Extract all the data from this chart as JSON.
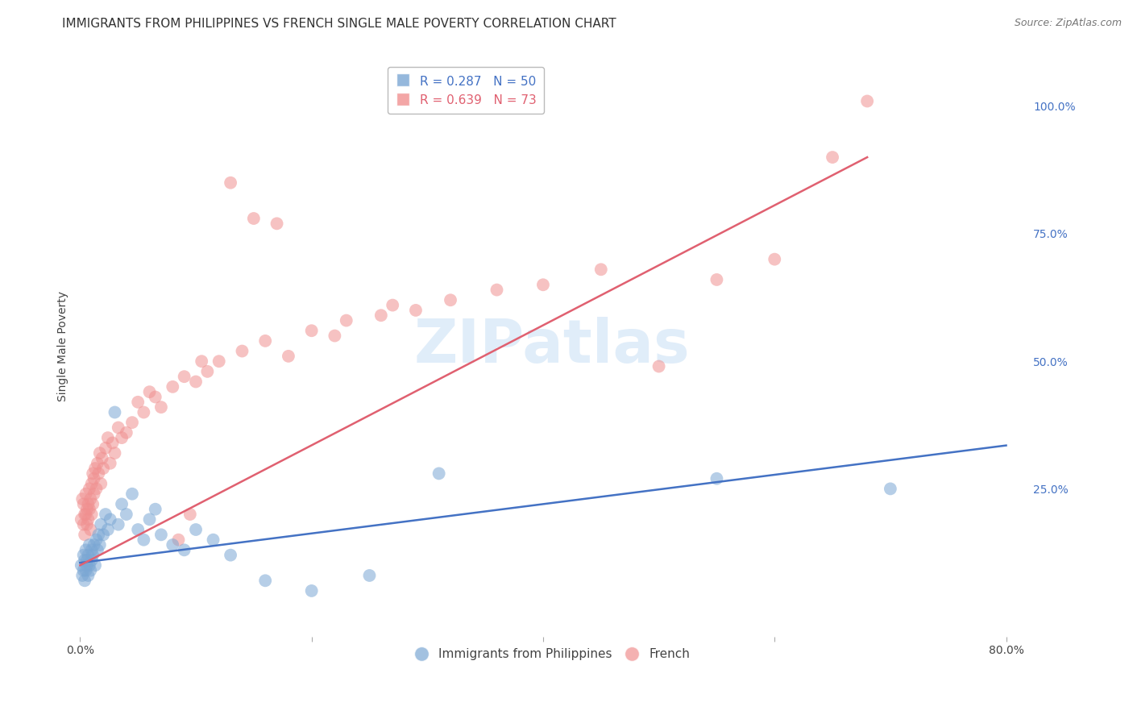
{
  "title": "IMMIGRANTS FROM PHILIPPINES VS FRENCH SINGLE MALE POVERTY CORRELATION CHART",
  "source": "Source: ZipAtlas.com",
  "ylabel": "Single Male Poverty",
  "right_yticks": [
    0.0,
    0.25,
    0.5,
    0.75,
    1.0
  ],
  "right_yticklabels": [
    "",
    "25.0%",
    "50.0%",
    "75.0%",
    "100.0%"
  ],
  "xlim": [
    -0.005,
    0.82
  ],
  "ylim": [
    -0.04,
    1.1
  ],
  "xticks": [
    0.0,
    0.2,
    0.4,
    0.6,
    0.8
  ],
  "xticklabels": [
    "0.0%",
    "",
    "",
    "",
    "80.0%"
  ],
  "blue_R": 0.287,
  "blue_N": 50,
  "pink_R": 0.639,
  "pink_N": 73,
  "blue_color": "#7BA7D4",
  "pink_color": "#F09090",
  "blue_line_color": "#4472C4",
  "pink_line_color": "#E06070",
  "legend_label_blue": "Immigrants from Philippines",
  "legend_label_pink": "French",
  "watermark": "ZIPatlas",
  "blue_scatter_x": [
    0.001,
    0.002,
    0.003,
    0.003,
    0.004,
    0.004,
    0.005,
    0.005,
    0.006,
    0.006,
    0.007,
    0.007,
    0.008,
    0.008,
    0.009,
    0.01,
    0.01,
    0.011,
    0.012,
    0.013,
    0.014,
    0.015,
    0.016,
    0.017,
    0.018,
    0.02,
    0.022,
    0.024,
    0.026,
    0.03,
    0.033,
    0.036,
    0.04,
    0.045,
    0.05,
    0.055,
    0.06,
    0.065,
    0.07,
    0.08,
    0.09,
    0.1,
    0.115,
    0.13,
    0.16,
    0.2,
    0.25,
    0.31,
    0.55,
    0.7
  ],
  "blue_scatter_y": [
    0.1,
    0.08,
    0.12,
    0.09,
    0.11,
    0.07,
    0.13,
    0.09,
    0.11,
    0.1,
    0.12,
    0.08,
    0.14,
    0.1,
    0.09,
    0.13,
    0.11,
    0.12,
    0.14,
    0.1,
    0.15,
    0.13,
    0.16,
    0.14,
    0.18,
    0.16,
    0.2,
    0.17,
    0.19,
    0.4,
    0.18,
    0.22,
    0.2,
    0.24,
    0.17,
    0.15,
    0.19,
    0.21,
    0.16,
    0.14,
    0.13,
    0.17,
    0.15,
    0.12,
    0.07,
    0.05,
    0.08,
    0.28,
    0.27,
    0.25
  ],
  "pink_scatter_x": [
    0.001,
    0.002,
    0.003,
    0.003,
    0.004,
    0.004,
    0.005,
    0.005,
    0.006,
    0.006,
    0.007,
    0.007,
    0.008,
    0.008,
    0.009,
    0.009,
    0.01,
    0.01,
    0.011,
    0.011,
    0.012,
    0.012,
    0.013,
    0.014,
    0.015,
    0.016,
    0.017,
    0.018,
    0.019,
    0.02,
    0.022,
    0.024,
    0.026,
    0.028,
    0.03,
    0.033,
    0.036,
    0.04,
    0.045,
    0.05,
    0.055,
    0.06,
    0.065,
    0.07,
    0.08,
    0.09,
    0.1,
    0.11,
    0.12,
    0.14,
    0.16,
    0.18,
    0.2,
    0.23,
    0.26,
    0.29,
    0.32,
    0.36,
    0.4,
    0.45,
    0.5,
    0.55,
    0.6,
    0.65,
    0.085,
    0.095,
    0.105,
    0.13,
    0.15,
    0.17,
    0.22,
    0.27,
    0.68
  ],
  "pink_scatter_y": [
    0.19,
    0.23,
    0.18,
    0.22,
    0.2,
    0.16,
    0.24,
    0.2,
    0.21,
    0.18,
    0.22,
    0.19,
    0.25,
    0.21,
    0.17,
    0.23,
    0.26,
    0.2,
    0.28,
    0.22,
    0.27,
    0.24,
    0.29,
    0.25,
    0.3,
    0.28,
    0.32,
    0.26,
    0.31,
    0.29,
    0.33,
    0.35,
    0.3,
    0.34,
    0.32,
    0.37,
    0.35,
    0.36,
    0.38,
    0.42,
    0.4,
    0.44,
    0.43,
    0.41,
    0.45,
    0.47,
    0.46,
    0.48,
    0.5,
    0.52,
    0.54,
    0.51,
    0.56,
    0.58,
    0.59,
    0.6,
    0.62,
    0.64,
    0.65,
    0.68,
    0.49,
    0.66,
    0.7,
    0.9,
    0.15,
    0.2,
    0.5,
    0.85,
    0.78,
    0.77,
    0.55,
    0.61,
    1.01
  ],
  "blue_line_x": [
    0.0,
    0.8
  ],
  "blue_line_y": [
    0.105,
    0.335
  ],
  "pink_line_x": [
    0.0,
    0.68
  ],
  "pink_line_y": [
    0.1,
    0.9
  ],
  "grid_color": "#CCCCCC",
  "background_color": "#FFFFFF",
  "title_fontsize": 11,
  "axis_label_fontsize": 10,
  "tick_fontsize": 10,
  "legend_fontsize": 11,
  "source_fontsize": 9
}
